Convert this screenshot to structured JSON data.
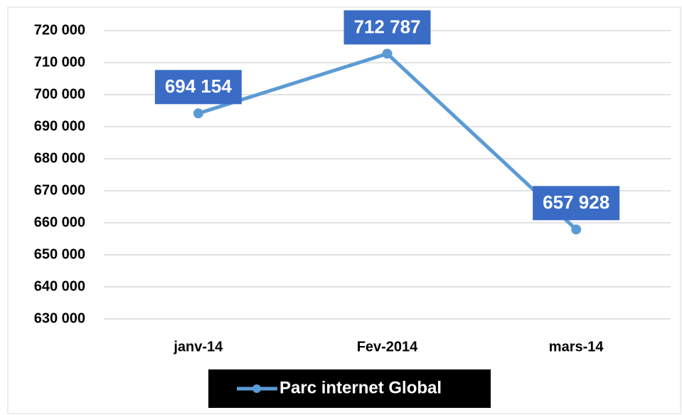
{
  "chart_data": {
    "type": "line",
    "categories": [
      "janv-14",
      "Fev-2014",
      "mars-14"
    ],
    "series": [
      {
        "name": "Parc internet Global",
        "color": "#5b9bd5",
        "values": [
          694154,
          712787,
          657928
        ],
        "value_labels": [
          "694 154",
          "712 787",
          "657 928"
        ]
      }
    ],
    "ylim": [
      630000,
      720000
    ],
    "yticks": [
      {
        "value": 630000,
        "label": "630 000"
      },
      {
        "value": 640000,
        "label": "640 000"
      },
      {
        "value": 650000,
        "label": "650 000"
      },
      {
        "value": 660000,
        "label": "660 000"
      },
      {
        "value": 670000,
        "label": "670 000"
      },
      {
        "value": 680000,
        "label": "680 000"
      },
      {
        "value": 690000,
        "label": "690 000"
      },
      {
        "value": 700000,
        "label": "700 000"
      },
      {
        "value": 710000,
        "label": "710 000"
      },
      {
        "value": 720000,
        "label": "720 000"
      }
    ],
    "grid": true,
    "legend": "bottom",
    "label_color": "#3a6cc6"
  }
}
